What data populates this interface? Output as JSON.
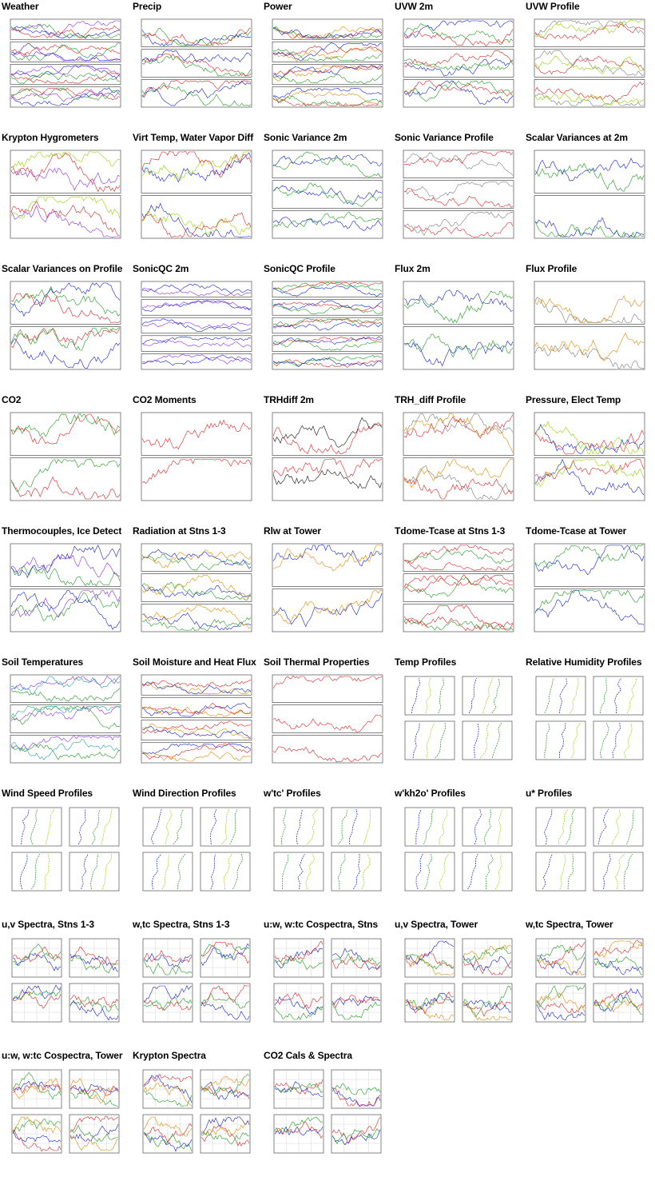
{
  "colors": {
    "red": "#e02020",
    "green": "#1a9a1a",
    "blue": "#1020d0",
    "black": "#111111",
    "orange": "#e08a00",
    "lime": "#8fd400",
    "gray": "#7a7a7a",
    "purple": "#8a2be2",
    "teal": "#20a0a0",
    "yellow": "#c8c800"
  },
  "plots": [
    {
      "title": "Weather",
      "kind": "ts",
      "panels": 4,
      "colors": [
        "blue",
        "red",
        "green",
        "purple"
      ]
    },
    {
      "title": "Precip",
      "kind": "ts",
      "panels": 3,
      "colors": [
        "green",
        "red",
        "blue"
      ]
    },
    {
      "title": "Power",
      "kind": "ts",
      "panels": 4,
      "colors": [
        "orange",
        "green",
        "red",
        "blue"
      ]
    },
    {
      "title": "UVW 2m",
      "kind": "ts",
      "panels": 3,
      "colors": [
        "blue",
        "green",
        "red"
      ]
    },
    {
      "title": "UVW Profile",
      "kind": "ts",
      "panels": 3,
      "colors": [
        "gray",
        "red",
        "lime"
      ]
    },
    {
      "title": "Krypton Hygrometers",
      "kind": "ts",
      "panels": 2,
      "colors": [
        "red",
        "lime",
        "purple"
      ]
    },
    {
      "title": "Virt Temp, Water Vapor Diff",
      "kind": "ts",
      "panels": 2,
      "colors": [
        "blue",
        "lime",
        "red"
      ]
    },
    {
      "title": "Sonic Variance 2m",
      "kind": "ts",
      "panels": 3,
      "colors": [
        "blue",
        "green"
      ]
    },
    {
      "title": "Sonic Variance Profile",
      "kind": "ts",
      "panels": 3,
      "colors": [
        "gray",
        "red"
      ]
    },
    {
      "title": "Scalar Variances at 2m",
      "kind": "ts",
      "panels": 2,
      "colors": [
        "blue",
        "green"
      ]
    },
    {
      "title": "Scalar Variances on Profile",
      "kind": "ts",
      "panels": 2,
      "colors": [
        "red",
        "green",
        "blue"
      ]
    },
    {
      "title": "SonicQC 2m",
      "kind": "ts",
      "panels": 5,
      "colors": [
        "blue",
        "purple"
      ]
    },
    {
      "title": "SonicQC Profile",
      "kind": "ts",
      "panels": 5,
      "colors": [
        "red",
        "green",
        "blue"
      ]
    },
    {
      "title": "Flux 2m",
      "kind": "ts",
      "panels": 2,
      "colors": [
        "blue",
        "green"
      ]
    },
    {
      "title": "Flux Profile",
      "kind": "ts",
      "panels": 2,
      "colors": [
        "gray",
        "orange"
      ]
    },
    {
      "title": "CO2",
      "kind": "ts",
      "panels": 2,
      "colors": [
        "red",
        "green"
      ]
    },
    {
      "title": "CO2 Moments",
      "kind": "ts",
      "panels": 2,
      "colors": [
        "red"
      ]
    },
    {
      "title": "TRHdiff 2m",
      "kind": "ts",
      "panels": 2,
      "colors": [
        "black",
        "red"
      ]
    },
    {
      "title": "TRH_diff Profile",
      "kind": "ts",
      "panels": 2,
      "colors": [
        "gray",
        "orange",
        "red"
      ]
    },
    {
      "title": "Pressure, Elect Temp",
      "kind": "ts",
      "panels": 2,
      "colors": [
        "blue",
        "red",
        "lime"
      ]
    },
    {
      "title": "Thermocouples, Ice Detect",
      "kind": "ts",
      "panels": 2,
      "colors": [
        "green",
        "blue",
        "purple"
      ]
    },
    {
      "title": "Radiation at Stns 1-3",
      "kind": "ts",
      "panels": 3,
      "colors": [
        "green",
        "blue",
        "orange"
      ]
    },
    {
      "title": "Rlw at Tower",
      "kind": "ts",
      "panels": 2,
      "colors": [
        "blue",
        "orange"
      ]
    },
    {
      "title": "Tdome-Tcase at Stns 1-3",
      "kind": "ts",
      "panels": 3,
      "colors": [
        "red",
        "green",
        "red"
      ]
    },
    {
      "title": "Tdome-Tcase at Tower",
      "kind": "ts",
      "panels": 2,
      "colors": [
        "blue",
        "green"
      ]
    },
    {
      "title": "Soil Temperatures",
      "kind": "ts",
      "panels": 3,
      "colors": [
        "purple",
        "green",
        "teal"
      ]
    },
    {
      "title": "Soil Moisture and Heat Flux",
      "kind": "ts",
      "panels": 4,
      "colors": [
        "orange",
        "blue",
        "red"
      ]
    },
    {
      "title": "Soil Thermal Properties",
      "kind": "ts",
      "panels": 3,
      "colors": [
        "red"
      ]
    },
    {
      "title": "Temp Profiles",
      "kind": "prof",
      "colors": [
        "blue",
        "lime",
        "green"
      ]
    },
    {
      "title": "Relative Humidity Profiles",
      "kind": "prof",
      "colors": [
        "green",
        "blue",
        "lime"
      ]
    },
    {
      "title": "Wind Speed Profiles",
      "kind": "prof",
      "colors": [
        "blue",
        "green",
        "lime"
      ]
    },
    {
      "title": "Wind Direction Profiles",
      "kind": "prof",
      "colors": [
        "blue",
        "lime",
        "green"
      ]
    },
    {
      "title": "w'tc' Profiles",
      "kind": "prof",
      "colors": [
        "green",
        "blue",
        "lime"
      ]
    },
    {
      "title": "w'kh2o' Profiles",
      "kind": "prof",
      "colors": [
        "blue",
        "green",
        "lime"
      ]
    },
    {
      "title": "u* Profiles",
      "kind": "prof",
      "colors": [
        "blue",
        "lime",
        "green"
      ]
    },
    {
      "title": "u,v Spectra, Stns 1-3",
      "kind": "spec",
      "colors": [
        "red",
        "green",
        "blue"
      ]
    },
    {
      "title": "w,tc Spectra, Stns 1-3",
      "kind": "spec",
      "colors": [
        "red",
        "green",
        "blue"
      ]
    },
    {
      "title": "u:w, w:tc Cospectra, Stns",
      "kind": "spec",
      "colors": [
        "blue",
        "green",
        "red"
      ]
    },
    {
      "title": "u,v Spectra, Tower",
      "kind": "spec",
      "colors": [
        "red",
        "orange",
        "blue",
        "green"
      ]
    },
    {
      "title": "w,tc Spectra, Tower",
      "kind": "spec",
      "colors": [
        "red",
        "orange",
        "blue",
        "green"
      ]
    },
    {
      "title": "u:w, w:tc Cospectra, Tower",
      "kind": "spec",
      "colors": [
        "blue",
        "orange",
        "red",
        "green"
      ]
    },
    {
      "title": "Krypton Spectra",
      "kind": "spec",
      "colors": [
        "red",
        "green",
        "blue",
        "orange"
      ]
    },
    {
      "title": "CO2 Cals & Spectra",
      "kind": "spec",
      "colors": [
        "blue",
        "red",
        "green"
      ]
    }
  ]
}
